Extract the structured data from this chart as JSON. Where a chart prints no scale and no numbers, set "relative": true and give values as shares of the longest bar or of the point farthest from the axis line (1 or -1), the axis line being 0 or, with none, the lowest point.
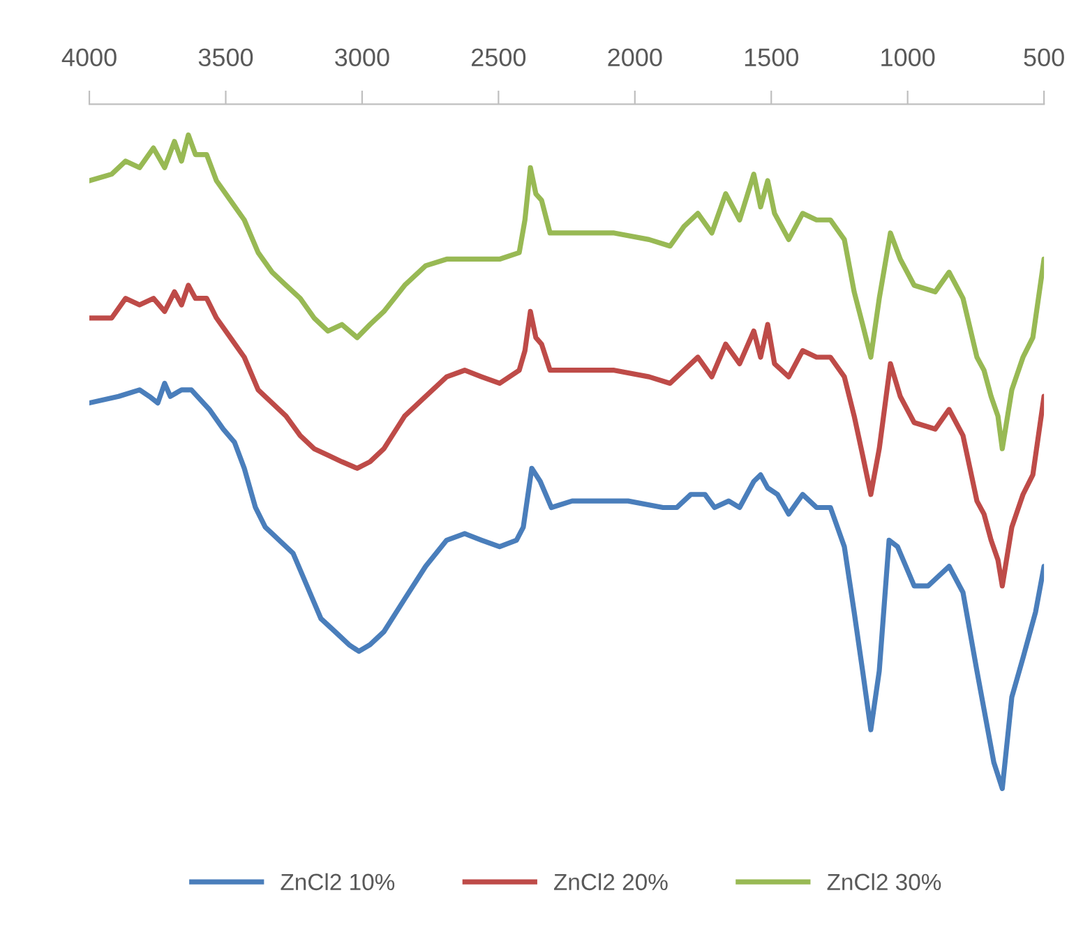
{
  "chart_data": {
    "type": "line",
    "relative": true,
    "xlim": [
      4000,
      500
    ],
    "xticks": [
      4000,
      3500,
      3000,
      2500,
      2000,
      1500,
      1000,
      500
    ],
    "tick_labels": "x",
    "legend": "bottom",
    "grid": false,
    "marker": "none",
    "line_style": "solid",
    "x": [
      4000,
      3918,
      3867,
      3816,
      3765,
      3724,
      3688,
      3662,
      3637,
      3611,
      3570,
      3534,
      3483,
      3432,
      3381,
      3330,
      3279,
      3227,
      3176,
      3125,
      3074,
      3018,
      2971,
      2920,
      2844,
      2767,
      2690,
      2624,
      2562,
      2496,
      2424,
      2403,
      2383,
      2363,
      2342,
      2311,
      2230,
      2076,
      1948,
      1871,
      1820,
      1769,
      1718,
      1667,
      1616,
      1564,
      1539,
      1513,
      1488,
      1436,
      1385,
      1334,
      1283,
      1232,
      1196,
      1165,
      1135,
      1104,
      1063,
      1027,
      976,
      899,
      848,
      797,
      746,
      720,
      694,
      669,
      653,
      618,
      577,
      541,
      500
    ],
    "series": [
      {
        "name": "ZnCl2 10%",
        "color": "#4a7ebb",
        "x": [
          4000,
          3893,
          3816,
          3780,
          3749,
          3724,
          3703,
          3662,
          3626,
          3560,
          3509,
          3468,
          3432,
          3391,
          3355,
          3304,
          3253,
          3202,
          3151,
          3099,
          3048,
          3012,
          2971,
          2920,
          2844,
          2767,
          2690,
          2624,
          2562,
          2496,
          2434,
          2409,
          2378,
          2347,
          2306,
          2230,
          2127,
          2025,
          1897,
          1846,
          1795,
          1743,
          1708,
          1656,
          1616,
          1564,
          1539,
          1513,
          1477,
          1436,
          1385,
          1334,
          1283,
          1232,
          1196,
          1165,
          1135,
          1104,
          1068,
          1037,
          976,
          925,
          848,
          797,
          746,
          684,
          653,
          618,
          577,
          531,
          500
        ],
        "values": [
          0.59,
          0.6,
          0.61,
          0.6,
          0.59,
          0.62,
          0.6,
          0.61,
          0.61,
          0.58,
          0.55,
          0.53,
          0.49,
          0.43,
          0.4,
          0.38,
          0.36,
          0.31,
          0.26,
          0.24,
          0.22,
          0.21,
          0.22,
          0.24,
          0.29,
          0.34,
          0.38,
          0.39,
          0.38,
          0.37,
          0.38,
          0.4,
          0.49,
          0.47,
          0.43,
          0.44,
          0.44,
          0.44,
          0.43,
          0.43,
          0.45,
          0.45,
          0.43,
          0.44,
          0.43,
          0.47,
          0.48,
          0.46,
          0.45,
          0.42,
          0.45,
          0.43,
          0.43,
          0.37,
          0.27,
          0.18,
          0.09,
          0.18,
          0.38,
          0.37,
          0.31,
          0.31,
          0.34,
          0.3,
          0.18,
          0.04,
          0.0,
          0.14,
          0.2,
          0.27,
          0.34
        ]
      },
      {
        "name": "ZnCl2 20%",
        "color": "#be4b48",
        "values": [
          0.72,
          0.72,
          0.75,
          0.74,
          0.75,
          0.73,
          0.76,
          0.74,
          0.77,
          0.75,
          0.75,
          0.72,
          0.69,
          0.66,
          0.61,
          0.59,
          0.57,
          0.54,
          0.52,
          0.51,
          0.5,
          0.49,
          0.5,
          0.52,
          0.57,
          0.6,
          0.63,
          0.64,
          0.63,
          0.62,
          0.64,
          0.67,
          0.73,
          0.69,
          0.68,
          0.64,
          0.64,
          0.64,
          0.63,
          0.62,
          0.64,
          0.66,
          0.63,
          0.68,
          0.65,
          0.7,
          0.66,
          0.71,
          0.65,
          0.63,
          0.67,
          0.66,
          0.66,
          0.63,
          0.57,
          0.51,
          0.45,
          0.52,
          0.65,
          0.6,
          0.56,
          0.55,
          0.58,
          0.54,
          0.44,
          0.42,
          0.38,
          0.35,
          0.31,
          0.4,
          0.45,
          0.48,
          0.6
        ]
      },
      {
        "name": "ZnCl2 30%",
        "color": "#98b954",
        "values": [
          0.93,
          0.94,
          0.96,
          0.95,
          0.98,
          0.95,
          0.99,
          0.96,
          1.0,
          0.97,
          0.97,
          0.93,
          0.9,
          0.87,
          0.82,
          0.79,
          0.77,
          0.75,
          0.72,
          0.7,
          0.71,
          0.69,
          0.71,
          0.73,
          0.77,
          0.8,
          0.81,
          0.81,
          0.81,
          0.81,
          0.82,
          0.87,
          0.95,
          0.91,
          0.9,
          0.85,
          0.85,
          0.85,
          0.84,
          0.83,
          0.86,
          0.88,
          0.85,
          0.91,
          0.87,
          0.94,
          0.89,
          0.93,
          0.88,
          0.84,
          0.88,
          0.87,
          0.87,
          0.84,
          0.76,
          0.71,
          0.66,
          0.75,
          0.85,
          0.81,
          0.77,
          0.76,
          0.79,
          0.75,
          0.66,
          0.64,
          0.6,
          0.57,
          0.52,
          0.61,
          0.66,
          0.69,
          0.81
        ]
      }
    ]
  }
}
